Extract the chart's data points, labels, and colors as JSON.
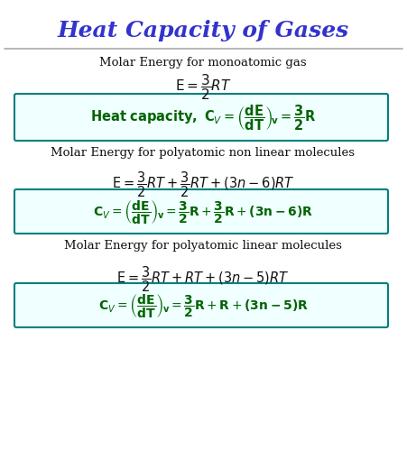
{
  "title": "Heat Capacity of Gases",
  "title_color": "#3333cc",
  "title_fontsize": 18,
  "bg_color": "#ffffff",
  "separator_color": "#aaaaaa",
  "text_color": "#111111",
  "formula_color": "#111111",
  "box_edgecolor": "#008080",
  "box_facecolor": "#f0ffff",
  "green_color": "#006400",
  "section1_label": "Molar Energy for monoatomic gas",
  "section2_label": "Molar Energy for polyatomic non linear molecules",
  "section3_label": "Molar Energy for polyatomic linear molecules"
}
